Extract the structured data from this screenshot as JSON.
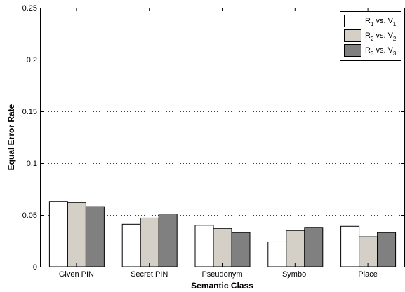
{
  "chart_data": {
    "type": "bar",
    "title": "",
    "xlabel": "Semantic Class",
    "ylabel": "Equal Error Rate",
    "ylim": [
      0,
      0.25
    ],
    "yticks": [
      0,
      0.05,
      0.1,
      0.15,
      0.2,
      0.25
    ],
    "ytick_labels": [
      "0",
      "0.05",
      "0.1",
      "0.15",
      "0.2",
      "0.25"
    ],
    "grid": "horizontal dotted",
    "legend_position": "top-right",
    "categories": [
      "Given PIN",
      "Secret PIN",
      "Pseudonym",
      "Symbol",
      "Place"
    ],
    "series": [
      {
        "name": "R1 vs. V1",
        "legend": {
          "a": "R",
          "a_sub": "1",
          "mid": " vs. V",
          "b_sub": "1"
        },
        "color": "#ffffff",
        "values": [
          0.063,
          0.041,
          0.04,
          0.024,
          0.039
        ]
      },
      {
        "name": "R2 vs. V2",
        "legend": {
          "a": "R",
          "a_sub": "2",
          "mid": " vs. V",
          "b_sub": "2"
        },
        "color": "#d4d0c8",
        "values": [
          0.062,
          0.047,
          0.037,
          0.035,
          0.029
        ]
      },
      {
        "name": "R3 vs. V3",
        "legend": {
          "a": "R",
          "a_sub": "3",
          "mid": " vs. V",
          "b_sub": "3"
        },
        "color": "#808080",
        "values": [
          0.058,
          0.051,
          0.033,
          0.038,
          0.033
        ]
      }
    ]
  }
}
